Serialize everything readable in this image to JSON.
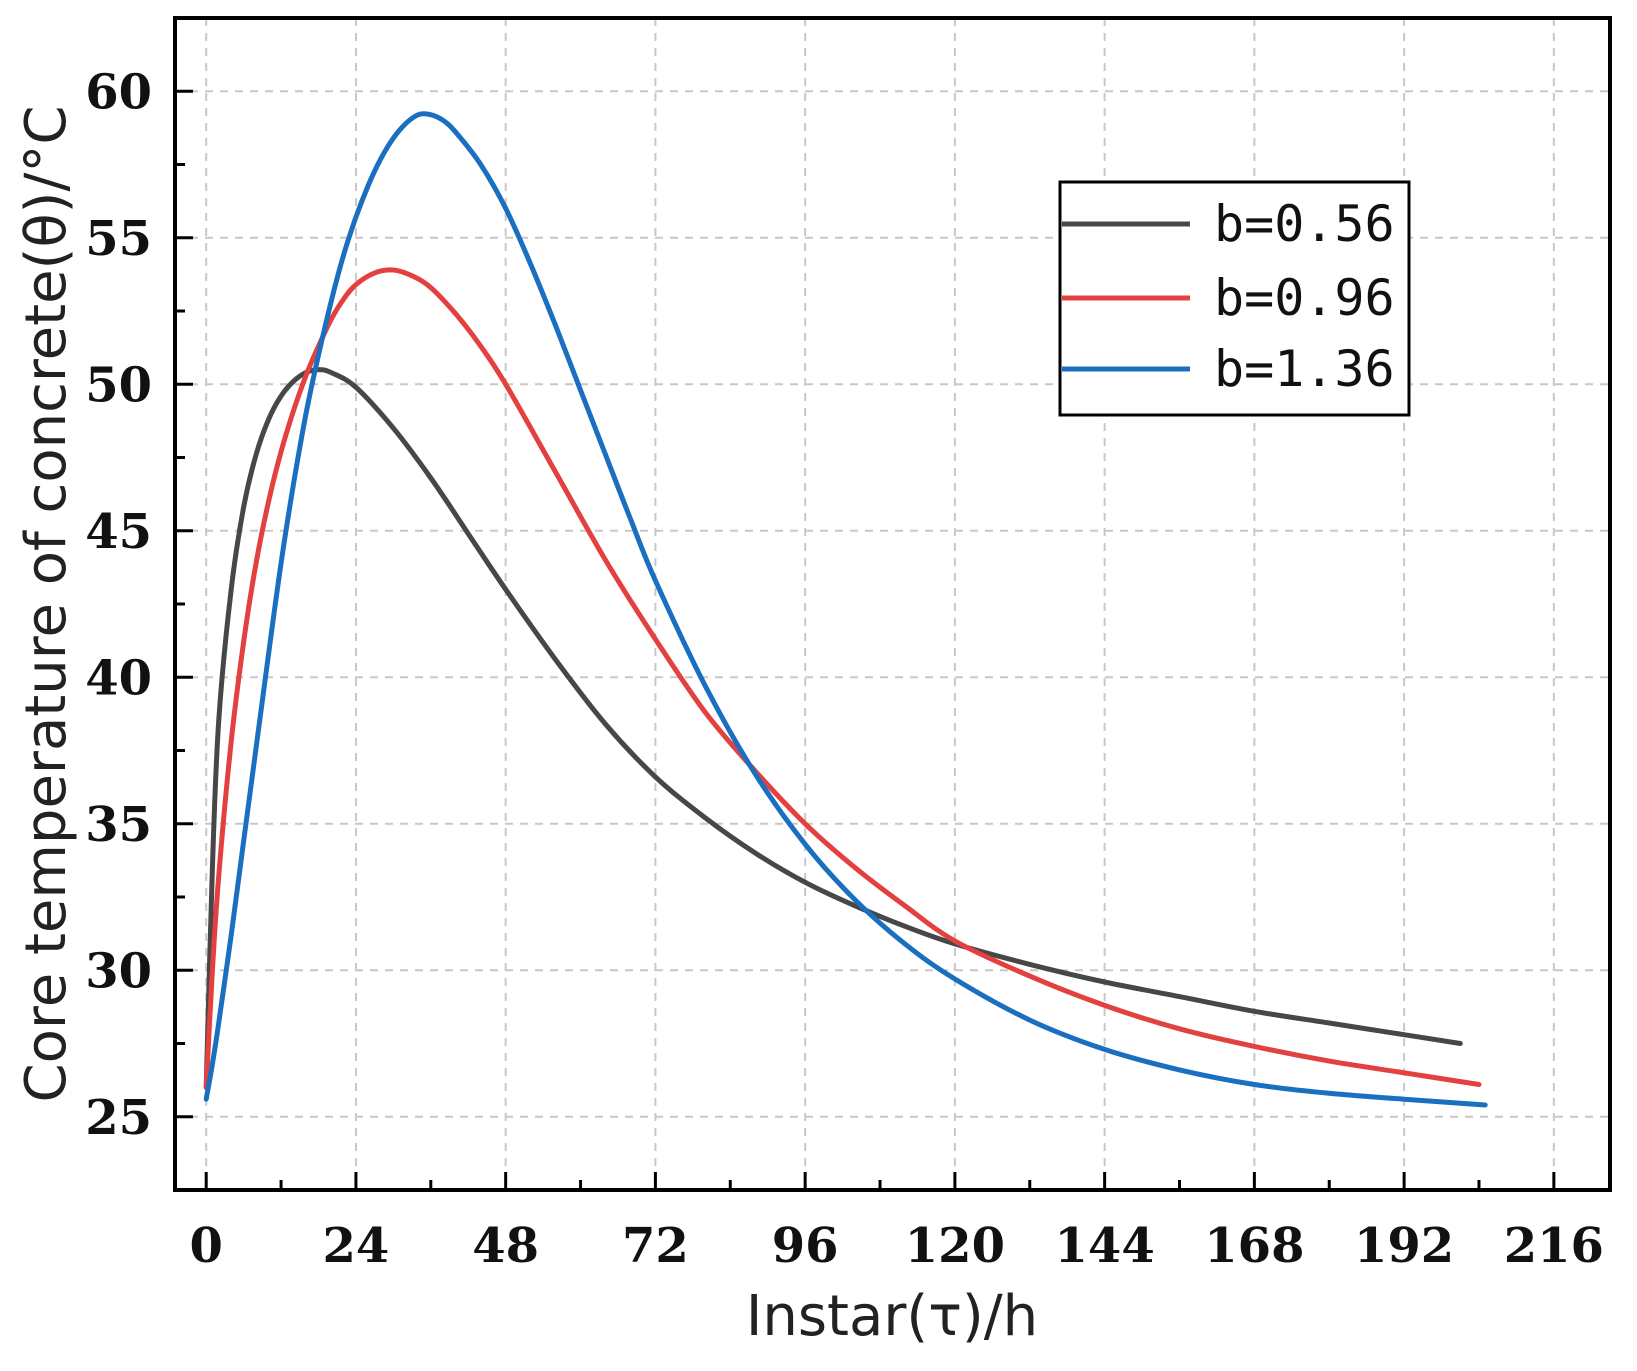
{
  "chart_data": {
    "type": "line",
    "title": "",
    "xlabel": "Instar(τ)/h",
    "ylabel": "Core temperature of concrete(θ)/°C",
    "xlim": [
      -5,
      225
    ],
    "ylim": [
      22.5,
      62.5
    ],
    "xticks": [
      0,
      24,
      48,
      72,
      96,
      120,
      144,
      168,
      192,
      216
    ],
    "yticks": [
      25,
      30,
      35,
      40,
      45,
      50,
      55,
      60
    ],
    "xtick_labels": [
      "0",
      "24",
      "48",
      "72",
      "96",
      "120",
      "144",
      "168",
      "192",
      "216"
    ],
    "ytick_labels": [
      "25",
      "30",
      "35",
      "40",
      "45",
      "50",
      "55",
      "60"
    ],
    "grid": true,
    "legend_position": "top-right",
    "series": [
      {
        "name": "b=0.56",
        "color": "#474747",
        "x": [
          0,
          1,
          2,
          4,
          6,
          8,
          10,
          12,
          14,
          16,
          18,
          20,
          24,
          30,
          36,
          42,
          48,
          56,
          64,
          72,
          80,
          88,
          96,
          104,
          112,
          120,
          132,
          144,
          156,
          168,
          180,
          192,
          201
        ],
        "y": [
          26.0,
          33.5,
          38.5,
          43.0,
          45.8,
          47.6,
          48.8,
          49.6,
          50.1,
          50.4,
          50.5,
          50.4,
          49.9,
          48.5,
          46.8,
          44.9,
          43.0,
          40.6,
          38.4,
          36.6,
          35.2,
          34.0,
          33.0,
          32.2,
          31.5,
          30.9,
          30.2,
          29.6,
          29.1,
          28.6,
          28.2,
          27.8,
          27.5
        ]
      },
      {
        "name": "b=0.96",
        "color": "#e3413f",
        "x": [
          0,
          1,
          2,
          4,
          6,
          8,
          10,
          12,
          14,
          16,
          18,
          20,
          22,
          24,
          27,
          30,
          33,
          36,
          40,
          44,
          48,
          56,
          64,
          72,
          80,
          88,
          96,
          104,
          112,
          120,
          132,
          144,
          156,
          168,
          180,
          192,
          204
        ],
        "y": [
          26.0,
          30.0,
          33.2,
          37.8,
          41.2,
          43.9,
          46.0,
          47.7,
          49.1,
          50.3,
          51.3,
          52.2,
          52.9,
          53.4,
          53.8,
          53.9,
          53.7,
          53.3,
          52.4,
          51.3,
          50.0,
          47.0,
          44.0,
          41.3,
          38.8,
          36.8,
          35.0,
          33.5,
          32.2,
          31.0,
          29.8,
          28.8,
          28.0,
          27.4,
          26.9,
          26.5,
          26.1
        ]
      },
      {
        "name": "b=1.36",
        "color": "#1a6fc1",
        "x": [
          0,
          1,
          2,
          4,
          6,
          8,
          10,
          12,
          14,
          16,
          18,
          20,
          22,
          24,
          26,
          28,
          30,
          32,
          34,
          36,
          38,
          40,
          44,
          48,
          52,
          56,
          60,
          64,
          68,
          72,
          80,
          88,
          96,
          104,
          112,
          120,
          132,
          144,
          156,
          168,
          180,
          192,
          205
        ],
        "y": [
          25.6,
          26.8,
          28.2,
          31.2,
          34.4,
          37.6,
          40.8,
          43.9,
          46.6,
          49.0,
          51.0,
          52.8,
          54.4,
          55.7,
          56.8,
          57.7,
          58.4,
          58.9,
          59.2,
          59.2,
          59.0,
          58.6,
          57.5,
          56.0,
          54.1,
          52.0,
          49.8,
          47.6,
          45.4,
          43.3,
          39.7,
          36.7,
          34.3,
          32.4,
          30.9,
          29.7,
          28.3,
          27.3,
          26.6,
          26.1,
          25.8,
          25.6,
          25.4
        ]
      }
    ]
  }
}
